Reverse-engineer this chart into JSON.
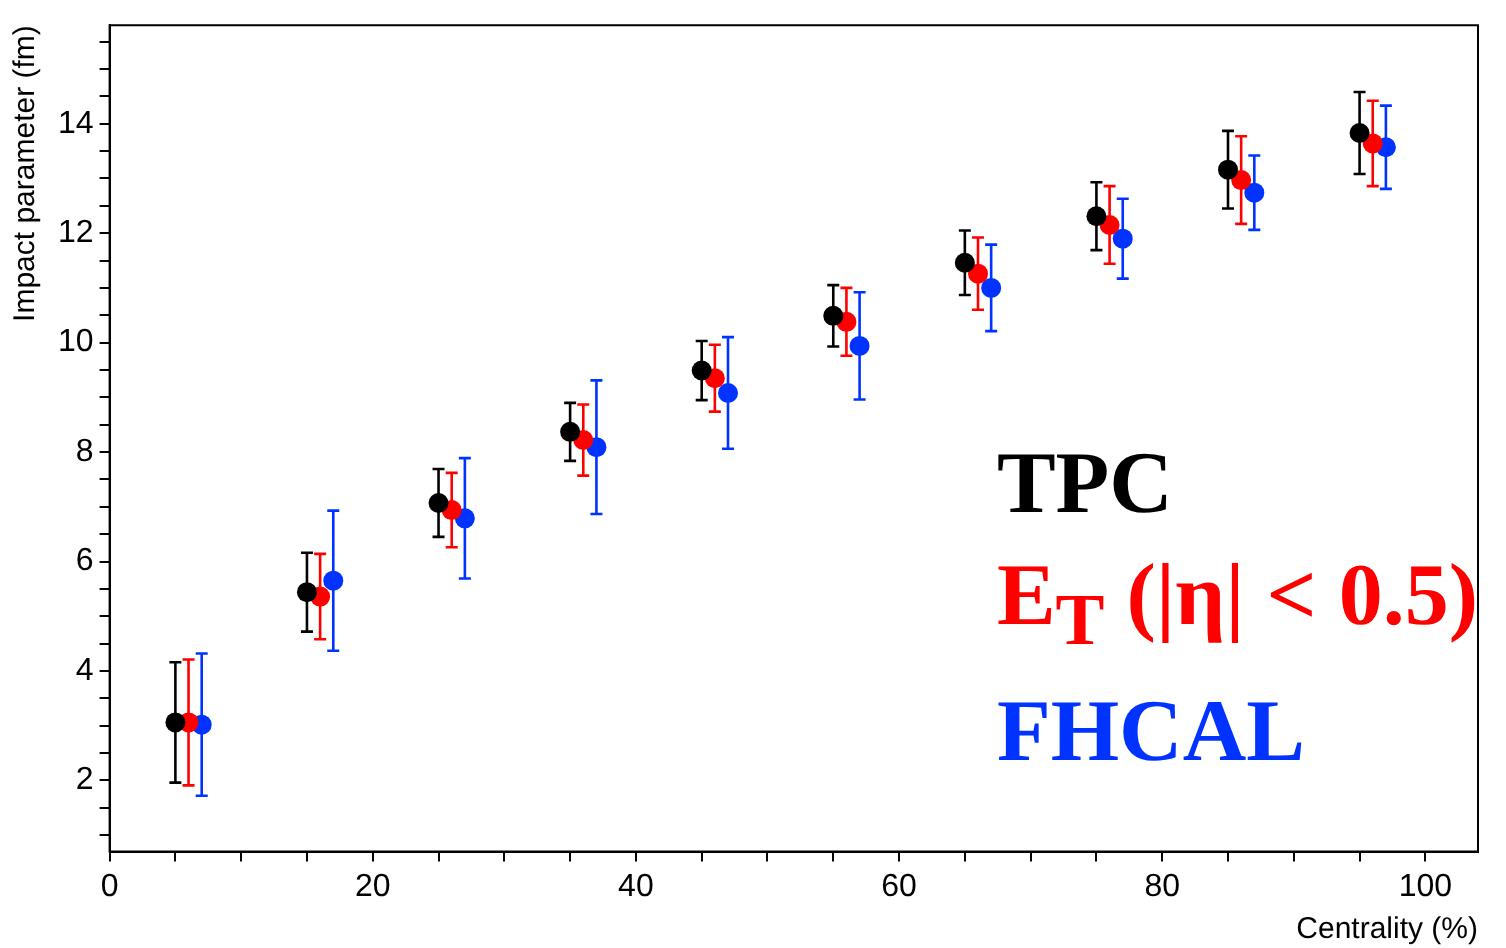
{
  "chart_data": {
    "type": "scatter",
    "xlabel": "Centrality (%)",
    "ylabel": "Impact parameter (fm)",
    "xlim": [
      0,
      104
    ],
    "ylim": [
      0.7,
      15.8
    ],
    "xticks": [
      0,
      {
        "value": 5,
        "label": null
      },
      {
        "value": 10,
        "label": null
      },
      {
        "value": 15,
        "label": null
      },
      20,
      {
        "value": 25,
        "label": null
      },
      {
        "value": 30,
        "label": null
      },
      {
        "value": 35,
        "label": null
      },
      40,
      {
        "value": 45,
        "label": null
      },
      {
        "value": 50,
        "label": null
      },
      {
        "value": 55,
        "label": null
      },
      60,
      {
        "value": 65,
        "label": null
      },
      {
        "value": 70,
        "label": null
      },
      {
        "value": 75,
        "label": null
      },
      80,
      {
        "value": 85,
        "label": null
      },
      {
        "value": 90,
        "label": null
      },
      {
        "value": 95,
        "label": null
      },
      100
    ],
    "yticks": [
      {
        "value": 1,
        "label": null
      },
      {
        "value": 1.5,
        "label": null
      },
      2,
      {
        "value": 2.5,
        "label": null
      },
      {
        "value": 3,
        "label": null
      },
      {
        "value": 3.5,
        "label": null
      },
      4,
      {
        "value": 4.5,
        "label": null
      },
      {
        "value": 5,
        "label": null
      },
      {
        "value": 5.5,
        "label": null
      },
      6,
      {
        "value": 6.5,
        "label": null
      },
      {
        "value": 7,
        "label": null
      },
      {
        "value": 7.5,
        "label": null
      },
      8,
      {
        "value": 8.5,
        "label": null
      },
      {
        "value": 9,
        "label": null
      },
      {
        "value": 9.5,
        "label": null
      },
      10,
      {
        "value": 10.5,
        "label": null
      },
      {
        "value": 11,
        "label": null
      },
      {
        "value": 11.5,
        "label": null
      },
      12,
      {
        "value": 12.5,
        "label": null
      },
      {
        "value": 13,
        "label": null
      },
      {
        "value": 13.5,
        "label": null
      },
      14,
      {
        "value": 14.5,
        "label": null
      },
      {
        "value": 15,
        "label": null
      },
      {
        "value": 15.5,
        "label": null
      }
    ],
    "grid": false,
    "legend": "bottom right",
    "marker": "circle",
    "series": [
      {
        "name": "TPC",
        "color": "#000000",
        "x": [
          5,
          15,
          25,
          35,
          45,
          55,
          65,
          75,
          85,
          95
        ],
        "values": [
          3.06,
          5.44,
          7.07,
          8.37,
          9.49,
          10.49,
          11.46,
          12.31,
          13.16,
          13.83
        ],
        "errors": [
          1.1,
          0.72,
          0.62,
          0.53,
          0.54,
          0.56,
          0.59,
          0.62,
          0.71,
          0.75
        ]
      },
      {
        "name": "E$_{T}$ (|η| < 0.5)",
        "color": "#ff0000",
        "x": [
          6,
          16,
          26,
          36,
          46,
          56,
          66,
          76,
          86,
          96
        ],
        "values": [
          3.06,
          5.36,
          6.94,
          8.22,
          9.35,
          10.38,
          11.26,
          12.15,
          12.97,
          13.64
        ],
        "errors": [
          1.15,
          0.78,
          0.68,
          0.65,
          0.61,
          0.62,
          0.66,
          0.71,
          0.8,
          0.78
        ]
      },
      {
        "name": "FHCAL",
        "color": "#0033ff",
        "x": [
          7,
          17,
          27,
          37,
          47,
          57,
          67,
          77,
          87,
          97
        ],
        "values": [
          3.02,
          5.65,
          6.79,
          8.09,
          9.08,
          9.94,
          11.0,
          11.9,
          12.74,
          13.57
        ],
        "errors": [
          1.3,
          1.28,
          1.1,
          1.22,
          1.02,
          0.98,
          0.79,
          0.73,
          0.68,
          0.76
        ]
      }
    ]
  }
}
